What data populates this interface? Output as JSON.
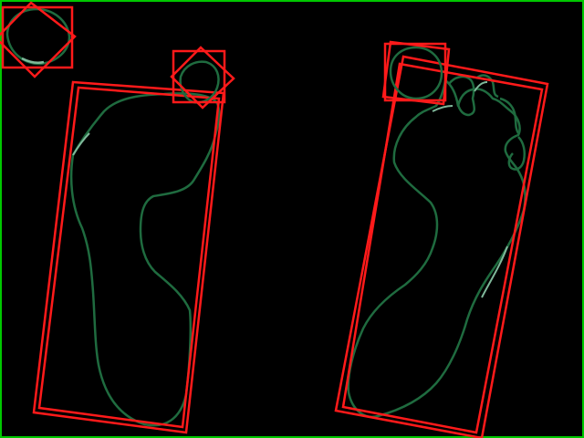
{
  "colors": {
    "background": "#000000",
    "frame": "#00c800",
    "box": "#ff1a1a",
    "contour": "#1f6b3f",
    "contour_highlight": "#7fb89a"
  },
  "detections": {
    "left_foot": {
      "contour": "foot-outline",
      "boxes": [
        "bounding-box",
        "rotated-box"
      ]
    },
    "right_foot": {
      "contour": "foot-outline",
      "boxes": [
        "bounding-box",
        "rotated-box"
      ]
    },
    "left_toe": {
      "contour": "toe-outline",
      "boxes": [
        "bounding-box",
        "rotated-box"
      ]
    },
    "corner_toe": {
      "contour": "toe-outline",
      "boxes": [
        "bounding-box",
        "rotated-box"
      ]
    },
    "right_toe": {
      "contour": "toe-outline",
      "boxes": [
        "bounding-box",
        "rotated-box"
      ]
    }
  }
}
